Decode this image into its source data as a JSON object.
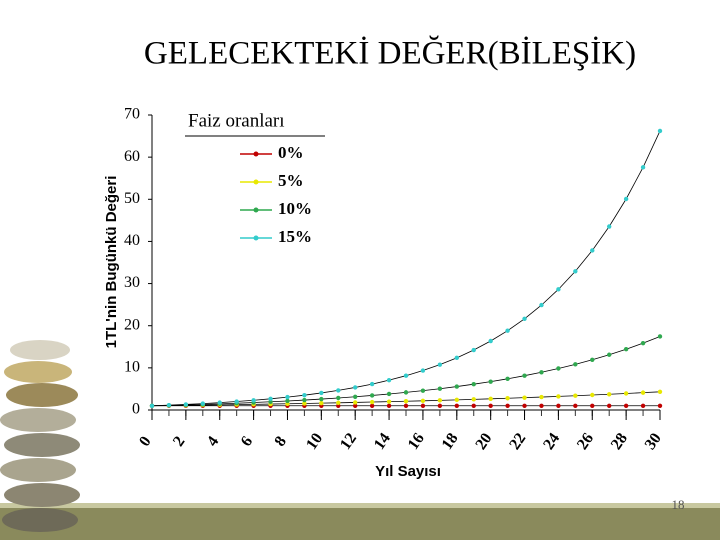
{
  "chart_data": {
    "type": "line",
    "title": "GELECEKTEKİ DEĞER(BİLEŞİK)",
    "y_label": "1TL'nin Bugünkü Değeri",
    "x_label": "Yıl Sayısı",
    "legend_title": "Faiz oranları",
    "x": [
      0,
      1,
      2,
      3,
      4,
      5,
      6,
      7,
      8,
      9,
      10,
      11,
      12,
      13,
      14,
      15,
      16,
      17,
      18,
      19,
      20,
      21,
      22,
      23,
      24,
      25,
      26,
      27,
      28,
      29,
      30
    ],
    "series": [
      {
        "name": "0%",
        "color": "#c00000",
        "values": [
          1,
          1,
          1,
          1,
          1,
          1,
          1,
          1,
          1,
          1,
          1,
          1,
          1,
          1,
          1,
          1,
          1,
          1,
          1,
          1,
          1,
          1,
          1,
          1,
          1,
          1,
          1,
          1,
          1,
          1,
          1
        ]
      },
      {
        "name": "5%",
        "color": "#e8e800",
        "values": [
          1,
          1.05,
          1.1,
          1.16,
          1.22,
          1.28,
          1.34,
          1.41,
          1.48,
          1.55,
          1.63,
          1.71,
          1.8,
          1.89,
          1.98,
          2.08,
          2.18,
          2.29,
          2.41,
          2.53,
          2.65,
          2.79,
          2.93,
          3.07,
          3.23,
          3.39,
          3.56,
          3.73,
          3.92,
          4.12,
          4.32
        ]
      },
      {
        "name": "10%",
        "color": "#2fa84f",
        "values": [
          1,
          1.1,
          1.21,
          1.33,
          1.46,
          1.61,
          1.77,
          1.95,
          2.14,
          2.36,
          2.59,
          2.85,
          3.14,
          3.45,
          3.8,
          4.18,
          4.59,
          5.05,
          5.56,
          6.12,
          6.73,
          7.4,
          8.14,
          8.95,
          9.85,
          10.83,
          11.92,
          13.11,
          14.42,
          15.86,
          17.45
        ]
      },
      {
        "name": "15%",
        "color": "#33cccc",
        "values": [
          1,
          1.15,
          1.32,
          1.52,
          1.75,
          2.01,
          2.31,
          2.66,
          3.06,
          3.52,
          4.05,
          4.65,
          5.35,
          6.15,
          7.08,
          8.14,
          9.36,
          10.76,
          12.38,
          14.23,
          16.37,
          18.82,
          21.64,
          24.89,
          28.63,
          32.92,
          37.86,
          43.54,
          50.07,
          57.58,
          66.21
        ]
      }
    ],
    "xlim": [
      0,
      30
    ],
    "xticks": [
      0,
      2,
      4,
      6,
      8,
      10,
      12,
      14,
      16,
      18,
      20,
      22,
      24,
      26,
      28,
      30
    ],
    "ylim": [
      0,
      70
    ],
    "yticks": [
      0,
      10,
      20,
      30,
      40,
      50,
      60,
      70
    ]
  },
  "slide_number": "18"
}
